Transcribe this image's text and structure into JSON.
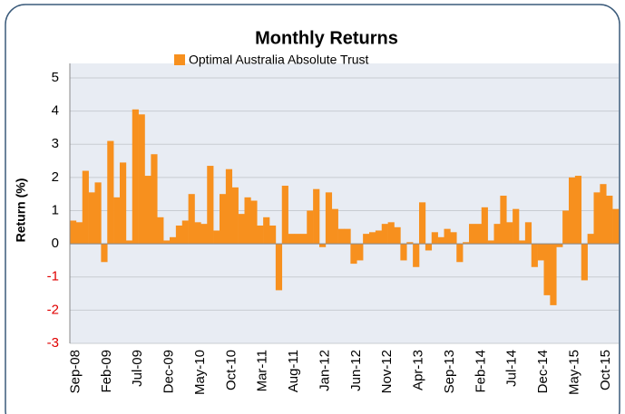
{
  "chart_data": {
    "type": "bar",
    "title": "Monthly Returns",
    "y_label": "Return (%)",
    "categories": [
      "Sep-08",
      null,
      null,
      null,
      null,
      "Feb-09",
      null,
      null,
      null,
      null,
      "Jul-09",
      null,
      null,
      null,
      null,
      "Dec-09",
      null,
      null,
      null,
      null,
      "May-10",
      null,
      null,
      null,
      null,
      "Oct-10",
      null,
      null,
      null,
      null,
      "Mar-11",
      null,
      null,
      null,
      null,
      "Aug-11",
      null,
      null,
      null,
      null,
      "Jan-12",
      null,
      null,
      null,
      null,
      "Jun-12",
      null,
      null,
      null,
      null,
      "Nov-12",
      null,
      null,
      null,
      null,
      "Apr-13",
      null,
      null,
      null,
      null,
      "Sep-13",
      null,
      null,
      null,
      null,
      "Feb-14",
      null,
      null,
      null,
      null,
      "Jul-14",
      null,
      null,
      null,
      null,
      "Dec-14",
      null,
      null,
      null,
      null,
      "May-15",
      null,
      null,
      null,
      null,
      "Oct-15",
      null,
      null
    ],
    "series": [
      {
        "name": "Optimal Australia Absolute Trust",
        "color": "#f7901e",
        "values": [
          0.7,
          0.65,
          2.2,
          1.55,
          1.85,
          -0.55,
          3.1,
          1.4,
          2.45,
          0.1,
          4.05,
          3.9,
          2.05,
          2.7,
          0.8,
          0.1,
          0.2,
          0.55,
          0.7,
          1.5,
          0.65,
          0.6,
          2.35,
          0.4,
          1.5,
          2.25,
          1.7,
          0.9,
          1.4,
          1.3,
          0.55,
          0.8,
          0.55,
          -1.4,
          1.75,
          0.3,
          0.3,
          0.3,
          1.0,
          1.65,
          -0.1,
          1.55,
          1.05,
          0.45,
          0.45,
          -0.6,
          -0.5,
          0.3,
          0.35,
          0.4,
          0.6,
          0.65,
          0.5,
          -0.5,
          0.05,
          -0.7,
          1.25,
          -0.2,
          0.35,
          0.2,
          0.45,
          0.35,
          -0.55,
          0.05,
          0.6,
          0.6,
          1.1,
          0.1,
          0.6,
          1.45,
          0.65,
          1.05,
          0.1,
          0.65,
          -0.7,
          -0.5,
          -1.55,
          -1.85,
          -0.1,
          1.0,
          2.0,
          2.05,
          -1.1,
          0.3,
          1.55,
          1.8,
          1.45,
          1.05
        ]
      }
    ],
    "ylim": [
      -3,
      5
    ],
    "yticks": [
      -3,
      -2,
      -1,
      0,
      1,
      2,
      3,
      4,
      5
    ],
    "grid": true,
    "tick_color": "#000000",
    "negative_tick_color": "#e00000",
    "legend": "top"
  }
}
